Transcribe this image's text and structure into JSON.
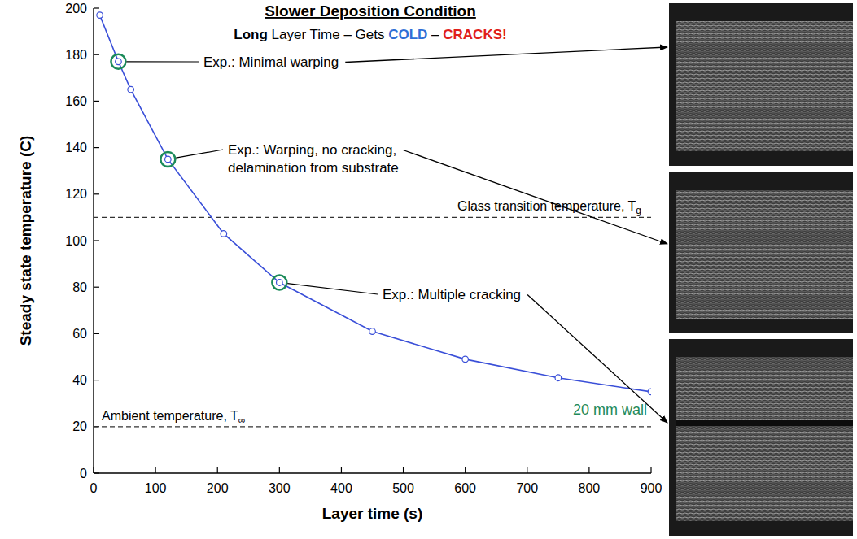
{
  "chart_data": {
    "type": "line",
    "title": "Slower Deposition Condition",
    "subtitle": [
      {
        "text": "Long",
        "color": "#000000"
      },
      {
        "text": " Layer Time – Gets ",
        "color": "#000000"
      },
      {
        "text": "COLD",
        "color": "#2f6fd6"
      },
      {
        "text": " – ",
        "color": "#000000"
      },
      {
        "text": "CRACKS!",
        "color": "#e0201b"
      }
    ],
    "x_label": "Layer time (s)",
    "y_label": "Steady state temperature (C)",
    "x": [
      10,
      40,
      60,
      120,
      210,
      300,
      450,
      600,
      750,
      900
    ],
    "series": [
      {
        "name": "20 mm wall",
        "color": "#3a4fd8",
        "marker": "circle",
        "values": [
          197,
          177,
          165,
          135,
          103,
          82,
          61,
          49,
          41,
          35
        ]
      }
    ],
    "xlim": [
      0,
      900
    ],
    "xticks": [
      0,
      100,
      200,
      300,
      400,
      500,
      600,
      700,
      800,
      900
    ],
    "ylim": [
      0,
      200
    ],
    "yticks": [
      0,
      20,
      40,
      60,
      80,
      100,
      120,
      140,
      160,
      180,
      200
    ],
    "reference_lines": [
      {
        "value": 110,
        "label": "Glass transition temperature, T",
        "subscript": "g",
        "line_style": "dashed"
      },
      {
        "value": 20,
        "label": "Ambient temperature, T",
        "subscript": "∞",
        "line_style": "dashed"
      }
    ],
    "annotations": [
      {
        "x": 40,
        "y": 177,
        "lines": [
          "Exp.: Minimal warping"
        ]
      },
      {
        "x": 120,
        "y": 135,
        "lines": [
          "Exp.: Warping, no cracking,",
          "delamination from substrate"
        ]
      },
      {
        "x": 300,
        "y": 82,
        "lines": [
          "Exp.: Multiple cracking"
        ]
      }
    ]
  }
}
